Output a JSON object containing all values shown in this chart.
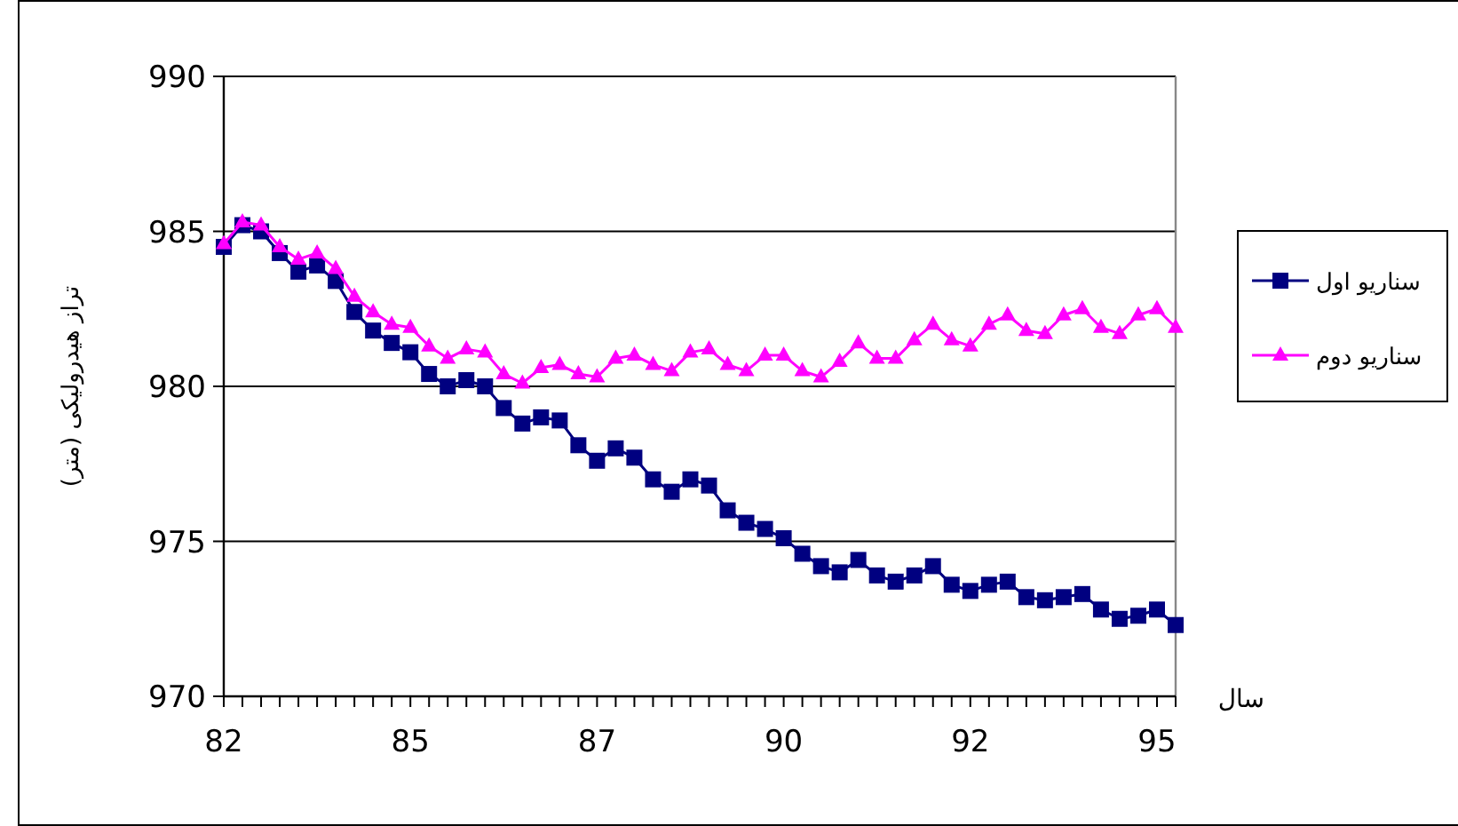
{
  "chart_data": {
    "type": "line",
    "xlabel": "سال",
    "ylabel": "تراز هیدرولیکی (متر)",
    "categories": [
      "82",
      null,
      null,
      null,
      null,
      null,
      null,
      null,
      null,
      null,
      "85",
      null,
      null,
      null,
      null,
      null,
      null,
      null,
      null,
      null,
      "87",
      null,
      null,
      null,
      null,
      null,
      null,
      null,
      null,
      null,
      "90",
      null,
      null,
      null,
      null,
      null,
      null,
      null,
      null,
      null,
      "92",
      null,
      null,
      null,
      null,
      null,
      null,
      null,
      null,
      null,
      "95",
      null
    ],
    "ylim": [
      970,
      990
    ],
    "yticks": [
      970,
      975,
      980,
      985,
      990
    ],
    "grid": "y",
    "legend": "right",
    "series": [
      {
        "name": "سناریو اول",
        "color": "#000080",
        "marker": "square",
        "values": [
          984.5,
          985.2,
          985.0,
          984.3,
          983.7,
          983.9,
          983.4,
          982.4,
          981.8,
          981.4,
          981.1,
          980.4,
          980.0,
          980.2,
          980.0,
          979.3,
          978.8,
          979.0,
          978.9,
          978.1,
          977.6,
          978.0,
          977.7,
          977.0,
          976.6,
          977.0,
          976.8,
          976.0,
          975.6,
          975.4,
          975.1,
          974.6,
          974.2,
          974.0,
          974.4,
          973.9,
          973.7,
          973.9,
          974.2,
          973.6,
          973.4,
          973.6,
          973.7,
          973.2,
          973.1,
          973.2,
          973.3,
          972.8,
          972.5,
          972.6,
          972.8,
          972.3
        ]
      },
      {
        "name": "سناریو دوم",
        "color": "#ff00ff",
        "marker": "triangle",
        "values": [
          984.6,
          985.3,
          985.2,
          984.5,
          984.1,
          984.3,
          983.8,
          982.9,
          982.4,
          982.0,
          981.9,
          981.3,
          980.9,
          981.2,
          981.1,
          980.4,
          980.1,
          980.6,
          980.7,
          980.4,
          980.3,
          980.9,
          981.0,
          980.7,
          980.5,
          981.1,
          981.2,
          980.7,
          980.5,
          981.0,
          981.0,
          980.5,
          980.3,
          980.8,
          981.4,
          980.9,
          980.9,
          981.5,
          982.0,
          981.5,
          981.3,
          982.0,
          982.3,
          981.8,
          981.7,
          982.3,
          982.5,
          981.9,
          981.7,
          982.3,
          982.5,
          981.9
        ]
      }
    ]
  }
}
